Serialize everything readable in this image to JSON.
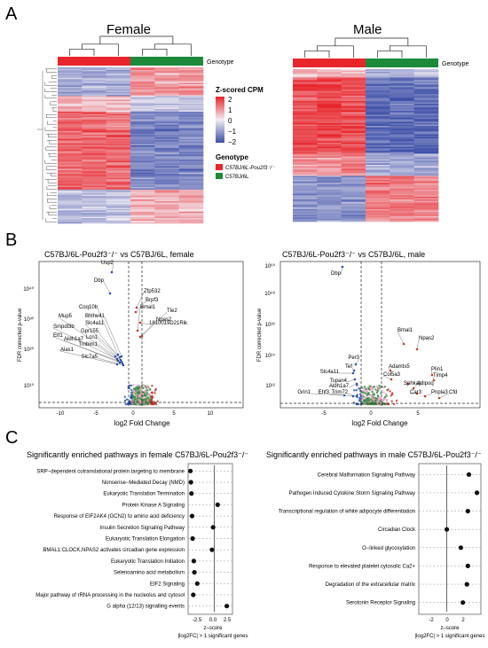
{
  "figure": {
    "panel_labels": [
      "A",
      "B",
      "C"
    ],
    "panel_a": {
      "female_title": "Female",
      "male_title": "Male",
      "genotype_track_label": "Genotype",
      "legend": {
        "scale_title": "Z-scored CPM",
        "ticks": [
          "2",
          "1",
          "0",
          "−1",
          "−2"
        ],
        "genotype_title": "Genotype",
        "genotype_items": [
          {
            "label": "C57BJ/6L-Pou2f3⁻/⁻",
            "color": "#e8252b"
          },
          {
            "label": "C57BJ/6L",
            "color": "#1c8a3a"
          }
        ]
      },
      "colors": {
        "high": "#e8252b",
        "mid": "#f2eef4",
        "low": "#3d4fa8",
        "genotype_ko": "#e8252b",
        "genotype_wt": "#1c8a3a"
      }
    },
    "panel_b": {
      "female": {
        "title": "C57BJ/6L-Pou2f3⁻/⁻ vs C57BJ/6L, female",
        "xlabel": "log2 Fold Change",
        "ylabel": "FDR corrected p-value",
        "xticks": [
          "-10",
          "-5",
          "0",
          "5",
          "10"
        ],
        "yticks": [
          "10¹⁰",
          "10²⁰",
          "10³⁰",
          "10⁴⁰"
        ],
        "labeled_genes": [
          "Usp2",
          "Dbp",
          "Zfp532",
          "Brpf3",
          "1810019D21Rik",
          "Bmal1",
          "Tle2",
          "Npas2",
          "Coq10b",
          "Bhlhe41",
          "Mup5",
          "Slc4a11",
          "Smpdl3b",
          "Gpr155",
          "Etf1",
          "Lcn1",
          "Aldh1a7",
          "Tmbim1",
          "Alas1",
          "Slc7a5"
        ]
      },
      "male": {
        "title": "C57BJ/6L-Pou2f3⁻/⁻ vs C57BJ/6L, male",
        "xlabel": "log2 Fold Change",
        "ylabel": "FDR corrected p-value",
        "xticks": [
          "-5",
          "0",
          "5"
        ],
        "yticks": [
          "10¹²",
          "10²⁴",
          "10³⁶",
          "10⁴⁸",
          "10⁶⁰"
        ],
        "labeled_genes": [
          "Dbp",
          "Bmal1",
          "Npas2",
          "Per3",
          "Tef",
          "Slc4a11",
          "Tspan4",
          "Aldh1a7",
          "Adamts5",
          "Col5a3",
          "Plin1",
          "Timp4",
          "Sphkap",
          "Adipoq",
          "Car3",
          "Pnpla3",
          "Cfd",
          "Grin1",
          "Ehf3",
          "Trim72"
        ]
      }
    },
    "panel_c": {
      "female": {
        "title": "Significantly enriched pathways in female C57BJ/6L-Pou2f3⁻/⁻",
        "xlabel": "z–score",
        "footnote": "|log2FC| > 1 significant genes",
        "xticks": [
          "-2.5",
          "0.0",
          "2.5"
        ],
        "pathways": [
          {
            "label": "SRP−dependent cotranslational protein targeting to membrane",
            "z": -4.2
          },
          {
            "label": "Nonsense−Mediated Decay (NMD)",
            "z": -4.1
          },
          {
            "label": "Eukaryotic Translation Termination",
            "z": -4.0
          },
          {
            "label": "Protein Kinase A Signaling",
            "z": 0.6
          },
          {
            "label": "Response of EIF2AK4 (GCN2) to amino acid deficiency",
            "z": -3.9
          },
          {
            "label": "Insulin Secretion Signaling Pathway",
            "z": -0.2
          },
          {
            "label": "Eukaryotic Translation Elongation",
            "z": -3.8
          },
          {
            "label": "BMAL1:CLOCK,NPAS2 activates circadian gene expression",
            "z": -0.4
          },
          {
            "label": "Eukaryotic Translation Initiation",
            "z": -3.6
          },
          {
            "label": "Selenoamino acid metabolism",
            "z": -3.5
          },
          {
            "label": "EIF2 Signaling",
            "z": -3.0
          },
          {
            "label": "Major pathway of rRNA processing in the nucleolus and cytosol",
            "z": -3.7
          },
          {
            "label": "G alpha (12/13) signalling events",
            "z": 2.2
          }
        ]
      },
      "male": {
        "title": "Significantly enriched pathways in male C57BJ/6L-Pou2f3⁻/⁻",
        "xlabel": "z–score",
        "footnote": "|log2FC| > 1 significant genes",
        "xticks": [
          "-2",
          "0",
          "2"
        ],
        "pathways": [
          {
            "label": "Cerebral Malformation Signaling Pathway",
            "z": 2.2
          },
          {
            "label": "Pathogen Induced Cytokine Storm Signaling Pathway",
            "z": 3.0
          },
          {
            "label": "Transcriptional regulation of white adipocyte differentiation",
            "z": 2.1
          },
          {
            "label": "Circadian Clock",
            "z": 0.0
          },
          {
            "label": "O−linked glycosylation",
            "z": 1.4
          },
          {
            "label": "Response to elevated platelet cytosolic Ca2+",
            "z": 2.1
          },
          {
            "label": "Degradation of the extracellular matrix",
            "z": 2.0
          },
          {
            "label": "Serotonin Receptor Signaling",
            "z": 1.6
          }
        ]
      }
    }
  }
}
